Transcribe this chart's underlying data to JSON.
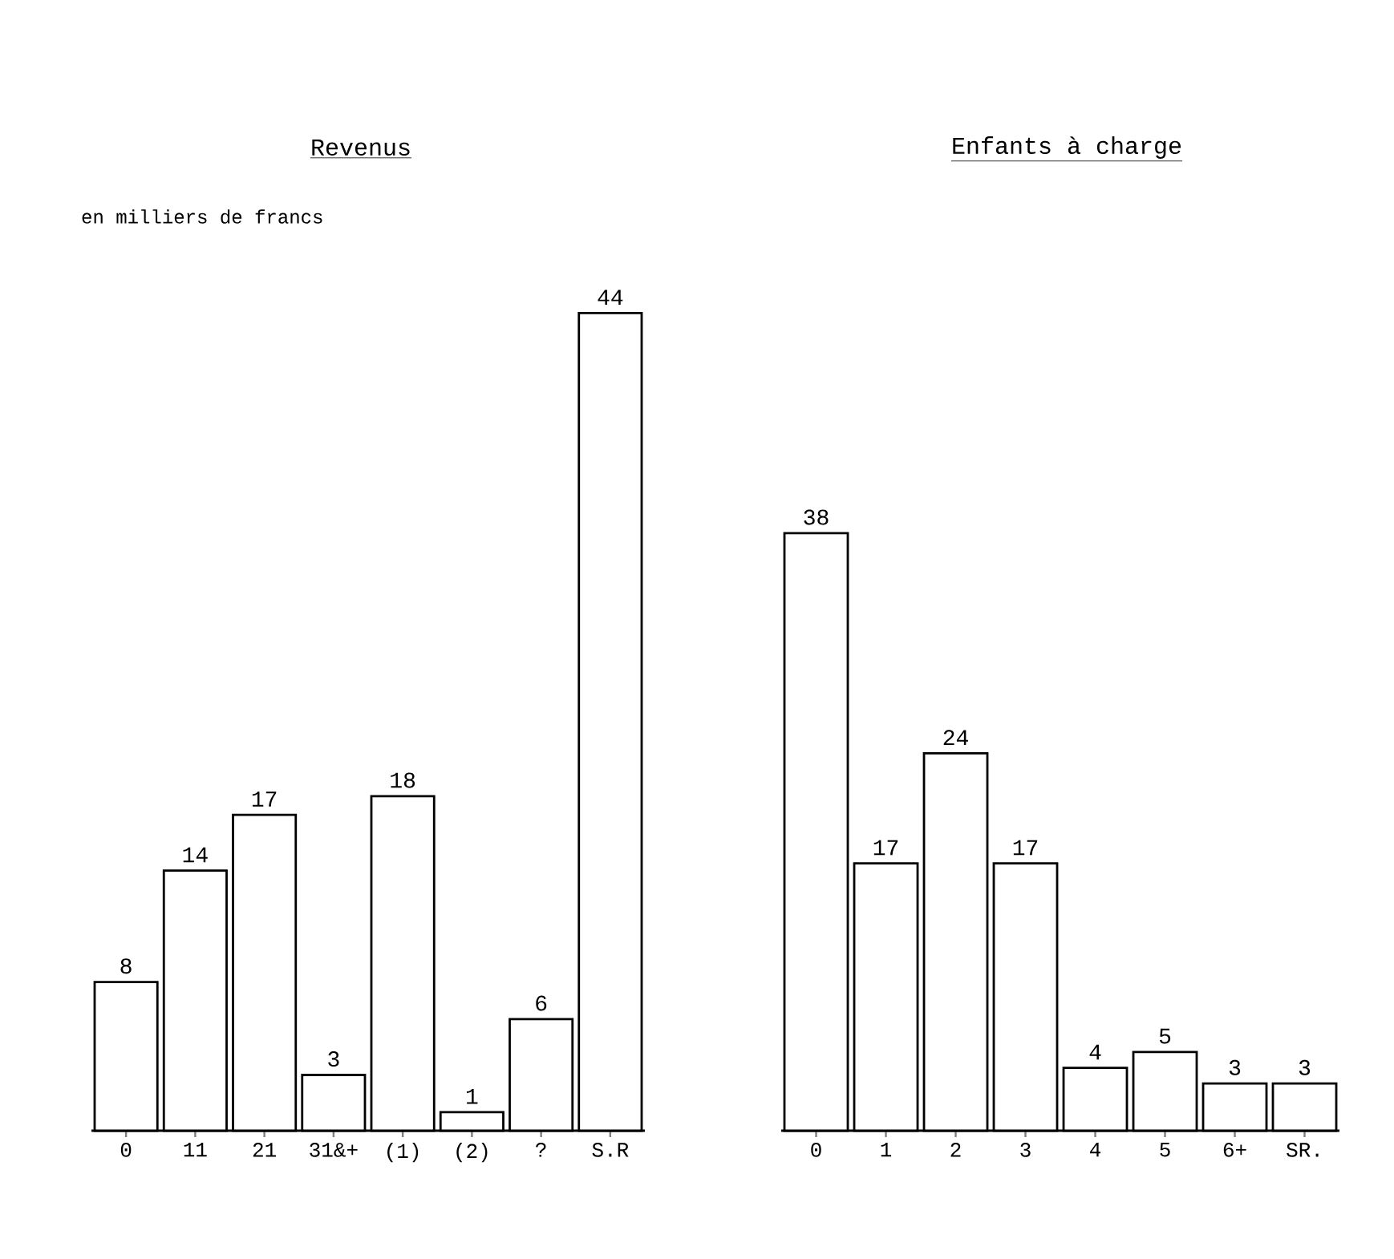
{
  "chart_data": [
    {
      "type": "bar",
      "title": "Revenus",
      "subtitle": "en milliers de francs",
      "categories": [
        "0",
        "11",
        "21",
        "31&+",
        "(1)",
        "(2)",
        "?",
        "S.R"
      ],
      "values": [
        8,
        14,
        17,
        3,
        18,
        1,
        6,
        44
      ],
      "color": "#ffffff",
      "data_labels": true
    },
    {
      "type": "bar",
      "title": "Enfants à charge",
      "categories": [
        "0",
        "1",
        "2",
        "3",
        "4",
        "5",
        "6+",
        "SR."
      ],
      "values": [
        38,
        17,
        24,
        17,
        4,
        5,
        3,
        3
      ],
      "color": "#ffffff",
      "data_labels": true
    }
  ]
}
